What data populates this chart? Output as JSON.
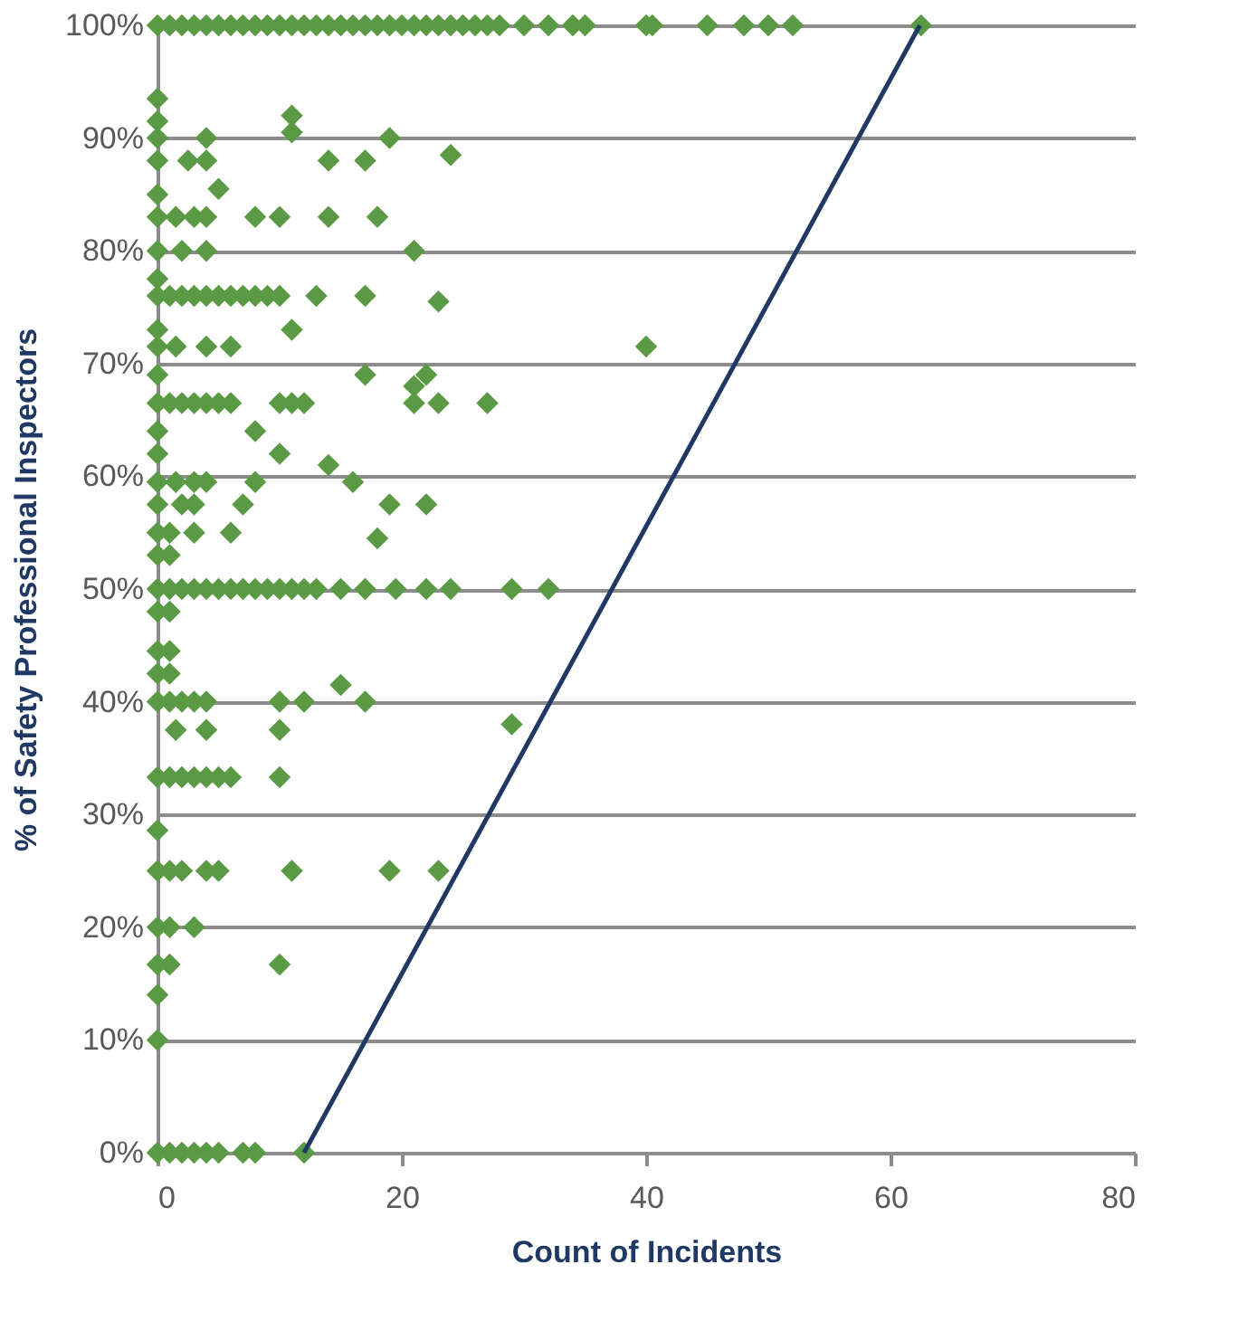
{
  "chart_data": {
    "type": "scatter",
    "xlabel": "Count of Incidents",
    "ylabel": "% of Safety Professional Inspectors",
    "xlim": [
      0,
      80
    ],
    "xticks": [
      0,
      20,
      40,
      60,
      80
    ],
    "ylim": [
      0,
      100
    ],
    "yticks": [
      {
        "value": 0,
        "label": "0%"
      },
      {
        "value": 10,
        "label": "10%"
      },
      {
        "value": 20,
        "label": "20%"
      },
      {
        "value": 30,
        "label": "30%"
      },
      {
        "value": 40,
        "label": "40%"
      },
      {
        "value": 50,
        "label": "50%"
      },
      {
        "value": 60,
        "label": "60%"
      },
      {
        "value": 70,
        "label": "70%"
      },
      {
        "value": 80,
        "label": "80%"
      },
      {
        "value": 90,
        "label": "90%"
      },
      {
        "value": 100,
        "label": "100%"
      }
    ],
    "grid": "y",
    "marker": "diamond",
    "series": [
      {
        "color": "#5b9a45",
        "x": [
          0,
          1,
          2,
          3,
          4,
          5,
          6,
          7,
          8,
          9,
          10,
          11,
          12,
          13,
          14,
          15,
          16,
          17,
          18,
          19,
          20,
          21,
          22,
          23,
          24,
          25,
          26,
          27,
          28,
          30,
          32,
          34,
          35,
          40,
          40.5,
          45,
          48,
          50,
          52,
          62.5,
          0,
          11,
          0,
          11,
          0,
          4,
          19,
          24,
          0,
          2.5,
          4,
          14,
          17,
          5,
          0,
          0,
          1.5,
          3,
          4,
          8,
          10,
          14,
          18,
          0,
          2,
          4,
          21,
          0,
          0,
          1,
          2,
          3,
          4,
          5,
          6,
          7,
          8,
          9,
          10,
          13,
          17,
          23,
          0,
          11,
          0,
          1.5,
          4,
          6,
          40,
          0,
          17,
          22,
          21,
          0,
          1,
          2,
          3,
          4,
          5,
          6,
          10,
          11,
          12,
          21,
          23,
          27,
          0,
          8,
          0,
          10,
          14,
          0,
          1.5,
          3,
          4,
          8,
          16,
          0,
          2,
          3,
          7,
          19,
          22,
          0,
          1,
          3,
          6,
          18,
          0,
          1,
          0,
          1,
          2,
          3,
          4,
          5,
          6,
          7,
          8,
          9,
          10,
          11,
          12,
          13,
          15,
          17,
          19.5,
          22,
          24,
          29,
          32,
          0,
          1,
          0,
          1,
          0,
          1,
          15,
          0,
          1,
          2,
          3,
          4,
          10,
          12,
          17,
          29,
          1.5,
          4,
          10,
          0,
          1,
          2,
          3,
          4,
          5,
          6,
          10,
          0,
          0,
          1,
          2,
          4,
          5,
          11,
          19,
          23,
          0,
          1,
          3,
          0,
          1,
          10,
          0,
          0,
          0,
          1,
          2,
          3,
          4,
          5,
          7,
          8,
          12
        ],
        "values": [
          100,
          100,
          100,
          100,
          100,
          100,
          100,
          100,
          100,
          100,
          100,
          100,
          100,
          100,
          100,
          100,
          100,
          100,
          100,
          100,
          100,
          100,
          100,
          100,
          100,
          100,
          100,
          100,
          100,
          100,
          100,
          100,
          100,
          100,
          100,
          100,
          100,
          100,
          100,
          100,
          93.5,
          92,
          91.5,
          90.5,
          90,
          90,
          90,
          88.5,
          88,
          88,
          88,
          88,
          88,
          85.5,
          85,
          83,
          83,
          83,
          83,
          83,
          83,
          83,
          83,
          80,
          80,
          80,
          80,
          77.5,
          76,
          76,
          76,
          76,
          76,
          76,
          76,
          76,
          76,
          76,
          76,
          76,
          76,
          75.5,
          73,
          73,
          71.5,
          71.5,
          71.5,
          71.5,
          71.5,
          69,
          69,
          69,
          68,
          66.5,
          66.5,
          66.5,
          66.5,
          66.5,
          66.5,
          66.5,
          66.5,
          66.5,
          66.5,
          66.5,
          66.5,
          66.5,
          64,
          64,
          62,
          62,
          61,
          59.5,
          59.5,
          59.5,
          59.5,
          59.5,
          59.5,
          57.5,
          57.5,
          57.5,
          57.5,
          57.5,
          57.5,
          55,
          55,
          55,
          55,
          54.5,
          53,
          53,
          50,
          50,
          50,
          50,
          50,
          50,
          50,
          50,
          50,
          50,
          50,
          50,
          50,
          50,
          50,
          50,
          50,
          50,
          50,
          50,
          50,
          48,
          48,
          44.5,
          44.5,
          42.5,
          42.5,
          41.5,
          40,
          40,
          40,
          40,
          40,
          40,
          40,
          40,
          38,
          37.5,
          37.5,
          37.5,
          33.3,
          33.3,
          33.3,
          33.3,
          33.3,
          33.3,
          33.3,
          33.3,
          28.6,
          25,
          25,
          25,
          25,
          25,
          25,
          25,
          25,
          20,
          20,
          20,
          16.7,
          16.7,
          16.7,
          14,
          10,
          0,
          0,
          0,
          0,
          0,
          0,
          0,
          0,
          0
        ]
      },
      {
        "type": "line",
        "color": "#1f3864",
        "line_style": "solid",
        "marker": "none",
        "x": [
          12,
          62.4
        ],
        "values": [
          0,
          100
        ]
      }
    ]
  }
}
